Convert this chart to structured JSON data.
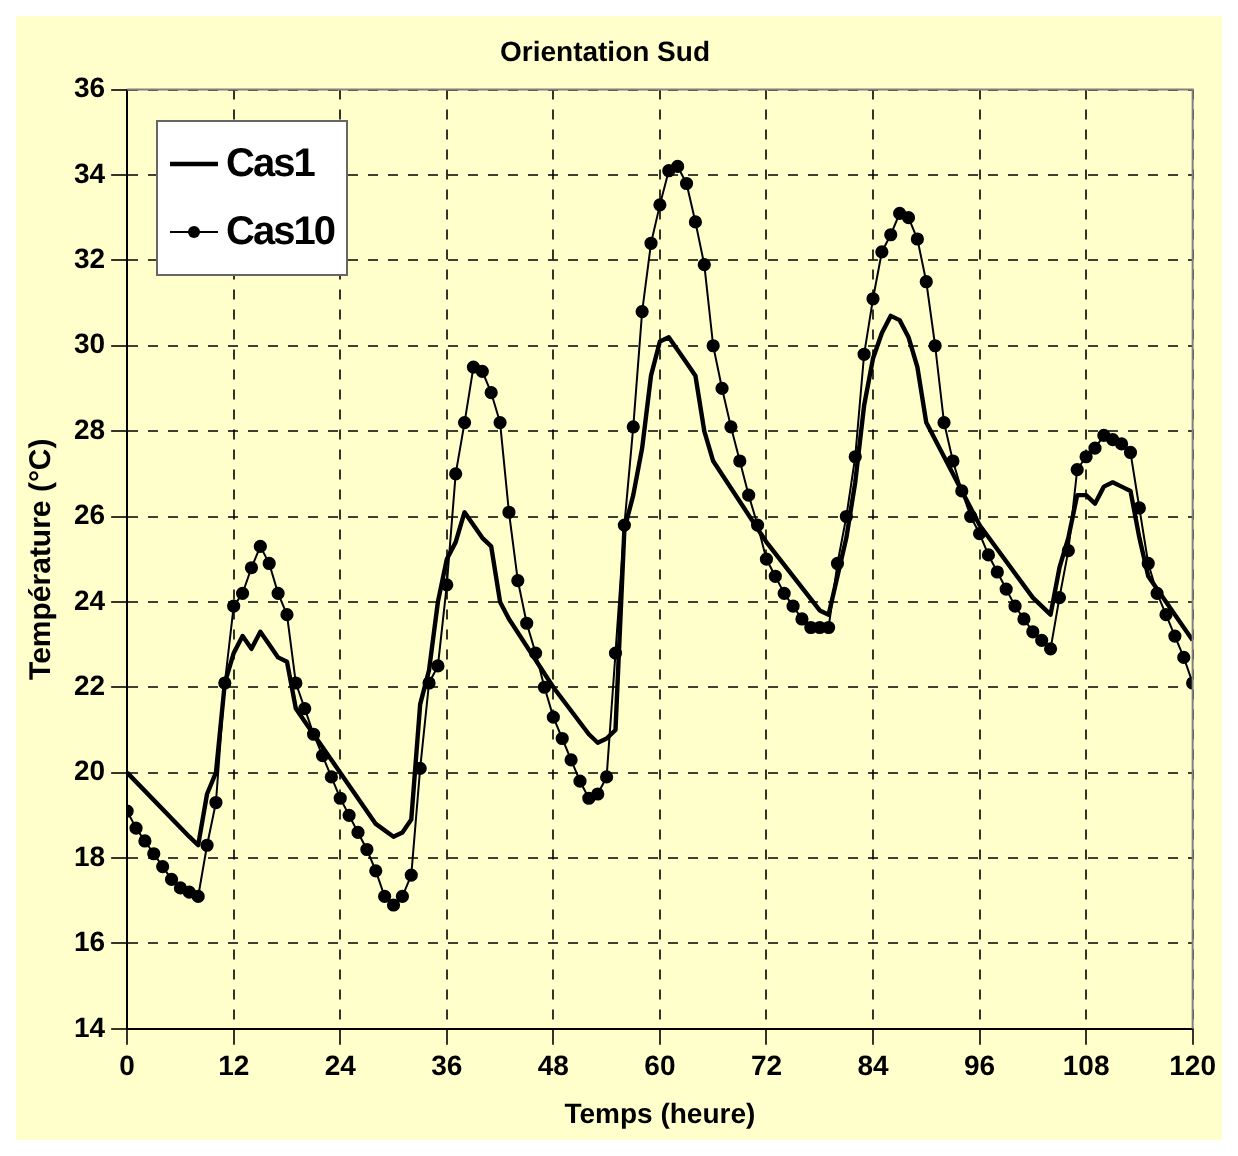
{
  "chart_data": {
    "type": "line",
    "title": "Orientation Sud",
    "xlabel": "Temps (heure)",
    "ylabel": "Température (°C)",
    "xlim": [
      0,
      120
    ],
    "xticks": [
      0,
      12,
      24,
      36,
      48,
      60,
      72,
      84,
      96,
      108,
      120
    ],
    "ylim": [
      14,
      36
    ],
    "yticks": [
      14,
      16,
      18,
      20,
      22,
      24,
      26,
      28,
      30,
      32,
      34,
      36
    ],
    "grid": true,
    "legend": "top left",
    "series": [
      {
        "name": "Cas1",
        "color": "#000000",
        "marker": "none",
        "x": [
          0,
          7,
          8,
          9,
          10,
          11,
          12,
          13,
          14,
          15,
          16,
          17,
          18,
          19,
          20,
          24,
          28,
          30,
          31,
          32,
          33,
          34,
          35,
          36,
          37,
          38,
          39,
          40,
          41,
          42,
          43,
          48,
          52,
          53,
          54,
          55,
          56,
          57,
          58,
          59,
          60,
          61,
          62,
          63,
          64,
          65,
          66,
          72,
          78,
          79,
          80,
          81,
          82,
          83,
          84,
          85,
          86,
          87,
          88,
          89,
          90,
          96,
          102,
          103,
          104,
          105,
          106,
          107,
          108,
          109,
          110,
          111,
          112,
          113,
          114,
          115,
          120
        ],
        "values": [
          20.0,
          18.5,
          18.3,
          19.5,
          20.0,
          22.1,
          22.8,
          23.2,
          22.9,
          23.3,
          23.0,
          22.7,
          22.6,
          21.5,
          21.2,
          20.0,
          18.8,
          18.5,
          18.6,
          18.9,
          21.6,
          22.4,
          24.0,
          25.0,
          25.4,
          26.1,
          25.8,
          25.5,
          25.3,
          24.0,
          23.6,
          22.0,
          20.9,
          20.7,
          20.8,
          21.0,
          25.7,
          26.5,
          27.6,
          29.3,
          30.1,
          30.2,
          29.9,
          29.6,
          29.3,
          28.0,
          27.3,
          25.4,
          23.8,
          23.7,
          24.6,
          25.5,
          26.8,
          28.6,
          29.7,
          30.3,
          30.7,
          30.6,
          30.2,
          29.5,
          28.2,
          25.8,
          24.1,
          23.9,
          23.7,
          24.8,
          25.5,
          26.5,
          26.5,
          26.3,
          26.7,
          26.8,
          26.7,
          26.6,
          25.5,
          24.6,
          23.1
        ]
      },
      {
        "name": "Cas10",
        "color": "#000000",
        "marker": "circle",
        "x": [
          0,
          1,
          2,
          3,
          4,
          5,
          6,
          7,
          8,
          9,
          10,
          11,
          12,
          13,
          14,
          15,
          16,
          17,
          18,
          19,
          20,
          21,
          22,
          23,
          24,
          25,
          26,
          27,
          28,
          29,
          30,
          31,
          32,
          33,
          34,
          35,
          36,
          37,
          38,
          39,
          40,
          41,
          42,
          43,
          44,
          45,
          46,
          47,
          48,
          49,
          50,
          51,
          52,
          53,
          54,
          55,
          56,
          57,
          58,
          59,
          60,
          61,
          62,
          63,
          64,
          65,
          66,
          67,
          68,
          69,
          70,
          71,
          72,
          73,
          74,
          75,
          76,
          77,
          78,
          79,
          80,
          81,
          82,
          83,
          84,
          85,
          86,
          87,
          88,
          89,
          90,
          91,
          92,
          93,
          94,
          95,
          96,
          97,
          98,
          99,
          100,
          101,
          102,
          103,
          104,
          105,
          106,
          107,
          108,
          109,
          110,
          111,
          112,
          113,
          114,
          115,
          116,
          117,
          118,
          119,
          120
        ],
        "values": [
          19.1,
          18.7,
          18.4,
          18.1,
          17.8,
          17.5,
          17.3,
          17.2,
          17.1,
          18.3,
          19.3,
          22.1,
          23.9,
          24.2,
          24.8,
          25.3,
          24.9,
          24.2,
          23.7,
          22.1,
          21.5,
          20.9,
          20.4,
          19.9,
          19.4,
          19.0,
          18.6,
          18.2,
          17.7,
          17.1,
          16.9,
          17.1,
          17.6,
          20.1,
          22.1,
          22.5,
          24.4,
          27.0,
          28.2,
          29.5,
          29.4,
          28.9,
          28.2,
          26.1,
          24.5,
          23.5,
          22.8,
          22.0,
          21.3,
          20.8,
          20.3,
          19.8,
          19.4,
          19.5,
          19.9,
          22.8,
          25.8,
          28.1,
          30.8,
          32.4,
          33.3,
          34.1,
          34.2,
          33.8,
          32.9,
          31.9,
          30.0,
          29.0,
          28.1,
          27.3,
          26.5,
          25.8,
          25.0,
          24.6,
          24.2,
          23.9,
          23.6,
          23.4,
          23.4,
          23.4,
          24.9,
          26.0,
          27.4,
          29.8,
          31.1,
          32.2,
          32.6,
          33.1,
          33.0,
          32.5,
          31.5,
          30.0,
          28.2,
          27.3,
          26.6,
          26.0,
          25.6,
          25.1,
          24.7,
          24.3,
          23.9,
          23.6,
          23.3,
          23.1,
          22.9,
          24.1,
          25.2,
          27.1,
          27.4,
          27.6,
          27.9,
          27.8,
          27.7,
          27.5,
          26.2,
          24.9,
          24.2,
          23.7,
          23.2,
          22.7,
          22.1
        ]
      }
    ]
  }
}
